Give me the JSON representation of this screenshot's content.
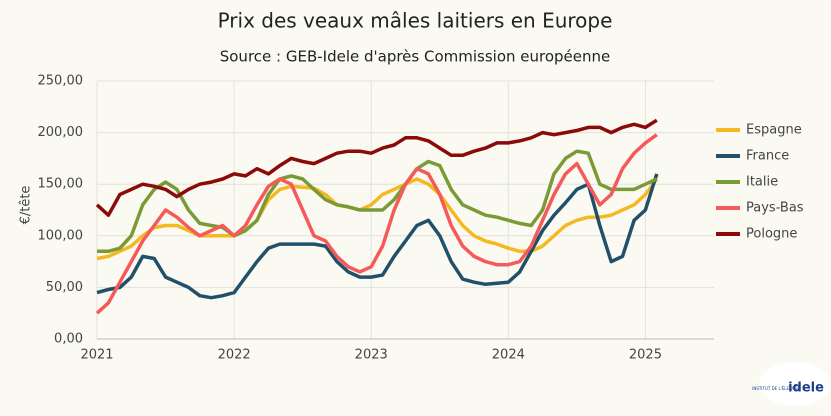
{
  "chart_data": {
    "type": "line",
    "title": "Prix des veaux mâles laitiers en Europe",
    "subtitle": "Source : GEB-Idele d'après Commission européenne",
    "y_label": "€/tête",
    "x": [
      2021,
      2021.083,
      2021.167,
      2021.25,
      2021.333,
      2021.417,
      2021.5,
      2021.583,
      2021.667,
      2021.75,
      2021.833,
      2021.917,
      2022,
      2022.083,
      2022.167,
      2022.25,
      2022.333,
      2022.417,
      2022.5,
      2022.583,
      2022.667,
      2022.75,
      2022.833,
      2022.917,
      2023,
      2023.083,
      2023.167,
      2023.25,
      2023.333,
      2023.417,
      2023.5,
      2023.583,
      2023.667,
      2023.75,
      2023.833,
      2023.917,
      2024,
      2024.083,
      2024.167,
      2024.25,
      2024.333,
      2024.417,
      2024.5,
      2024.583,
      2024.667,
      2024.75,
      2024.833,
      2024.917,
      2025,
      2025.083
    ],
    "series": [
      {
        "name": "Espagne",
        "color": "#f5b820",
        "values": [
          78,
          80,
          85,
          90,
          100,
          108,
          110,
          110,
          105,
          100,
          100,
          100,
          100,
          105,
          115,
          135,
          145,
          148,
          147,
          146,
          140,
          130,
          128,
          125,
          130,
          140,
          145,
          150,
          155,
          150,
          140,
          125,
          110,
          100,
          95,
          92,
          88,
          85,
          85,
          90,
          100,
          110,
          115,
          118,
          118,
          120,
          125,
          130,
          140,
          155
        ]
      },
      {
        "name": "France",
        "color": "#22506a",
        "values": [
          45,
          48,
          50,
          60,
          80,
          78,
          60,
          55,
          50,
          42,
          40,
          42,
          45,
          60,
          75,
          88,
          92,
          92,
          92,
          92,
          90,
          75,
          65,
          60,
          60,
          62,
          80,
          95,
          110,
          115,
          100,
          75,
          58,
          55,
          53,
          54,
          55,
          65,
          85,
          105,
          120,
          132,
          145,
          150,
          110,
          75,
          80,
          115,
          125,
          160
        ]
      },
      {
        "name": "Italie",
        "color": "#7a9a35",
        "values": [
          85,
          85,
          88,
          100,
          130,
          145,
          152,
          145,
          125,
          112,
          110,
          108,
          100,
          105,
          115,
          140,
          155,
          158,
          155,
          145,
          135,
          130,
          128,
          125,
          125,
          125,
          135,
          150,
          165,
          172,
          168,
          145,
          130,
          125,
          120,
          118,
          115,
          112,
          110,
          125,
          160,
          175,
          182,
          180,
          150,
          145,
          145,
          145,
          150,
          155
        ]
      },
      {
        "name": "Pays-Bas",
        "color": "#f45a5a",
        "values": [
          25,
          35,
          55,
          75,
          95,
          110,
          125,
          118,
          108,
          100,
          105,
          110,
          100,
          110,
          130,
          148,
          155,
          150,
          125,
          100,
          95,
          80,
          70,
          65,
          70,
          90,
          125,
          150,
          165,
          160,
          140,
          110,
          90,
          80,
          75,
          72,
          72,
          75,
          90,
          115,
          140,
          160,
          170,
          150,
          130,
          140,
          165,
          180,
          190,
          198
        ]
      },
      {
        "name": "Pologne",
        "color": "#8b0a0a",
        "values": [
          130,
          120,
          140,
          145,
          150,
          148,
          145,
          138,
          145,
          150,
          152,
          155,
          160,
          158,
          165,
          160,
          168,
          175,
          172,
          170,
          175,
          180,
          182,
          182,
          180,
          185,
          188,
          195,
          195,
          192,
          185,
          178,
          178,
          182,
          185,
          190,
          190,
          192,
          195,
          200,
          198,
          200,
          202,
          205,
          205,
          200,
          205,
          208,
          205,
          212
        ]
      }
    ],
    "xlim": [
      2021,
      2025.5
    ],
    "xticks": [
      2021,
      2022,
      2023,
      2024,
      2025
    ],
    "ylim": [
      0,
      250
    ],
    "yticks": [
      {
        "value": 0,
        "label": "0,00"
      },
      {
        "value": 50,
        "label": "50,00"
      },
      {
        "value": 100,
        "label": "100,00"
      },
      {
        "value": 150,
        "label": "150,00"
      },
      {
        "value": 200,
        "label": "200,00"
      },
      {
        "value": 250,
        "label": "250,00"
      }
    ],
    "grid": true,
    "legend": "right",
    "logo": {
      "name": "idele",
      "caption": "INSTITUT DE L'ÉLEVAGE"
    }
  }
}
